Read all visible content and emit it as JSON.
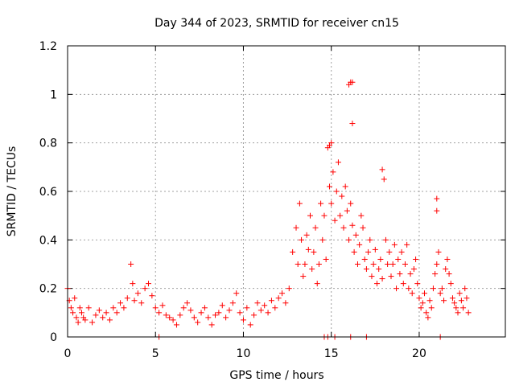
{
  "chart_data": {
    "type": "scatter",
    "title": "Day 344 of 2023, SRMTID for receiver cn15",
    "xlabel": "GPS time / hours",
    "ylabel": "SRMTID / TECUs",
    "xlim": [
      0,
      24.9
    ],
    "ylim": [
      0,
      1.2
    ],
    "xticks": [
      0,
      5,
      10,
      15,
      20
    ],
    "xtick_labels": [
      "0",
      "5",
      "10",
      "15",
      "20"
    ],
    "yticks": [
      0,
      0.2,
      0.4,
      0.6,
      0.8,
      1.0,
      1.2
    ],
    "ytick_labels": [
      "0",
      "0.2",
      "0.4",
      "0.6",
      "0.8",
      "1",
      "1.2"
    ],
    "grid": true,
    "marker": "+",
    "color": "#ff0000",
    "series": [
      {
        "name": "SRMTID",
        "x": [
          0.0,
          0.1,
          0.2,
          0.3,
          0.4,
          0.5,
          0.6,
          0.7,
          0.8,
          0.9,
          1.0,
          1.2,
          1.4,
          1.6,
          1.8,
          2.0,
          2.2,
          2.4,
          2.6,
          2.8,
          3.0,
          3.2,
          3.4,
          3.6,
          3.7,
          3.8,
          4.0,
          4.2,
          4.4,
          4.6,
          4.8,
          5.0,
          5.2,
          5.4,
          5.6,
          5.8,
          6.0,
          6.2,
          6.4,
          6.6,
          6.8,
          7.0,
          7.2,
          7.4,
          7.6,
          7.8,
          8.0,
          8.2,
          8.4,
          8.6,
          8.8,
          9.0,
          9.2,
          9.4,
          9.6,
          9.8,
          10.0,
          10.2,
          10.4,
          10.6,
          10.8,
          11.0,
          11.2,
          11.4,
          11.6,
          11.8,
          12.0,
          12.2,
          12.4,
          12.6,
          12.8,
          13.0,
          13.1,
          13.2,
          13.3,
          13.4,
          13.5,
          13.6,
          13.7,
          13.8,
          13.9,
          14.0,
          14.1,
          14.2,
          14.3,
          14.4,
          14.5,
          14.6,
          14.7,
          14.8,
          14.9,
          15.0,
          15.1,
          15.2,
          15.3,
          15.4,
          15.5,
          15.6,
          15.7,
          15.8,
          15.9,
          16.0,
          16.1,
          16.2,
          16.3,
          16.4,
          16.5,
          16.6,
          16.7,
          16.8,
          16.9,
          17.0,
          17.1,
          17.2,
          17.3,
          17.4,
          17.5,
          17.6,
          17.7,
          17.8,
          17.9,
          18.0,
          18.1,
          18.2,
          18.3,
          18.4,
          18.5,
          18.6,
          18.7,
          18.8,
          18.9,
          19.0,
          19.1,
          19.2,
          19.3,
          19.4,
          19.5,
          19.6,
          19.7,
          19.8,
          19.9,
          20.0,
          20.1,
          20.2,
          20.3,
          20.4,
          20.5,
          20.6,
          20.7,
          20.8,
          20.9,
          21.0,
          21.1,
          21.2,
          21.3,
          21.4,
          21.5,
          21.6,
          21.7,
          21.8,
          21.9,
          22.0,
          22.1,
          22.2,
          22.3,
          22.4,
          22.5,
          22.6,
          22.7,
          22.8,
          16.0,
          16.1,
          16.2,
          16.2,
          15.0,
          14.9,
          17.9,
          21.0,
          21.0,
          5.2,
          14.6,
          14.8,
          15.2,
          16.1,
          17.0,
          21.2
        ],
        "y": [
          0.2,
          0.15,
          0.12,
          0.1,
          0.16,
          0.08,
          0.06,
          0.12,
          0.1,
          0.08,
          0.07,
          0.12,
          0.06,
          0.09,
          0.11,
          0.08,
          0.1,
          0.07,
          0.12,
          0.1,
          0.14,
          0.12,
          0.16,
          0.3,
          0.22,
          0.15,
          0.18,
          0.14,
          0.2,
          0.22,
          0.17,
          0.12,
          0.1,
          0.13,
          0.09,
          0.08,
          0.07,
          0.05,
          0.09,
          0.12,
          0.14,
          0.11,
          0.08,
          0.06,
          0.1,
          0.12,
          0.08,
          0.05,
          0.09,
          0.1,
          0.13,
          0.08,
          0.11,
          0.14,
          0.18,
          0.1,
          0.07,
          0.12,
          0.05,
          0.09,
          0.14,
          0.11,
          0.13,
          0.1,
          0.15,
          0.12,
          0.16,
          0.18,
          0.14,
          0.2,
          0.35,
          0.45,
          0.3,
          0.55,
          0.4,
          0.25,
          0.3,
          0.42,
          0.36,
          0.5,
          0.28,
          0.35,
          0.45,
          0.22,
          0.3,
          0.55,
          0.4,
          0.5,
          0.32,
          0.78,
          0.62,
          0.55,
          0.68,
          0.48,
          0.6,
          0.72,
          0.5,
          0.58,
          0.45,
          0.62,
          0.52,
          0.4,
          0.55,
          0.46,
          0.35,
          0.42,
          0.3,
          0.38,
          0.5,
          0.45,
          0.32,
          0.28,
          0.35,
          0.4,
          0.25,
          0.3,
          0.36,
          0.22,
          0.28,
          0.32,
          0.24,
          0.65,
          0.4,
          0.3,
          0.35,
          0.25,
          0.3,
          0.38,
          0.2,
          0.32,
          0.26,
          0.35,
          0.22,
          0.3,
          0.38,
          0.2,
          0.26,
          0.18,
          0.28,
          0.32,
          0.22,
          0.16,
          0.12,
          0.14,
          0.18,
          0.1,
          0.08,
          0.15,
          0.12,
          0.2,
          0.26,
          0.3,
          0.35,
          0.18,
          0.2,
          0.15,
          0.28,
          0.32,
          0.26,
          0.22,
          0.16,
          0.14,
          0.12,
          0.1,
          0.18,
          0.15,
          0.12,
          0.2,
          0.16,
          0.1,
          1.04,
          1.05,
          1.05,
          0.88,
          0.8,
          0.79,
          0.69,
          0.57,
          0.52,
          0.0,
          0.0,
          0.0,
          0.0,
          0.0,
          0.0,
          0.0
        ]
      }
    ]
  }
}
